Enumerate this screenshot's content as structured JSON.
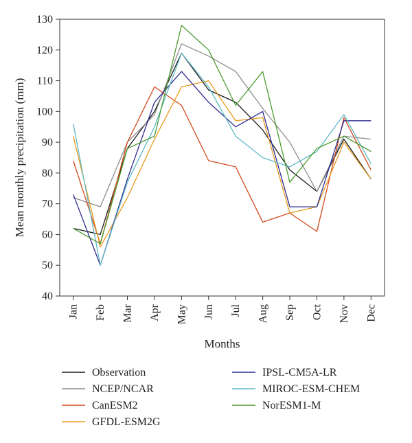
{
  "chart_data": {
    "type": "line",
    "xlabel": "Months",
    "ylabel": "Mean monthly precipitation (mm)",
    "ylim": [
      40,
      130
    ],
    "yticks": [
      40,
      50,
      60,
      70,
      80,
      90,
      100,
      110,
      120,
      130
    ],
    "grid": false,
    "legend_position": "bottom",
    "categories": [
      "Jan",
      "Feb",
      "Mar",
      "Apr",
      "May",
      "Jun",
      "Jul",
      "Aug",
      "Sep",
      "Oct",
      "Nov",
      "Dec"
    ],
    "series": [
      {
        "name": "Observation",
        "color": "#1a1a1a",
        "values": [
          62,
          60,
          88,
          100,
          119,
          107,
          103,
          94,
          81,
          74,
          91,
          78
        ]
      },
      {
        "name": "NCEP/NCAR",
        "color": "#8c8c8c",
        "values": [
          72,
          69,
          90,
          99,
          122,
          118,
          113,
          101,
          90,
          74,
          92,
          91
        ]
      },
      {
        "name": "CanESM2",
        "color": "#d2481b",
        "values": [
          84,
          57,
          90,
          108,
          102,
          84,
          82,
          64,
          67,
          61,
          98,
          81
        ]
      },
      {
        "name": "GFDL-ESM2G",
        "color": "#e89a1e",
        "values": [
          92,
          56,
          72,
          91,
          108,
          110,
          97,
          98,
          67,
          69,
          90,
          78
        ]
      },
      {
        "name": "IPSL-CM5A-LR",
        "color": "#2b2a8f",
        "values": [
          73,
          50,
          78,
          103,
          113,
          103,
          95,
          100,
          69,
          69,
          97,
          97
        ]
      },
      {
        "name": "MIROC-ESM-CHEM",
        "color": "#5fb8c4",
        "values": [
          96,
          50,
          77,
          95,
          119,
          108,
          92,
          85,
          82,
          87,
          99,
          83
        ]
      },
      {
        "name": "NorESM1-M",
        "color": "#4a9c2e",
        "values": [
          62,
          57,
          88,
          92,
          128,
          120,
          102,
          113,
          77,
          88,
          92,
          87
        ]
      }
    ]
  }
}
